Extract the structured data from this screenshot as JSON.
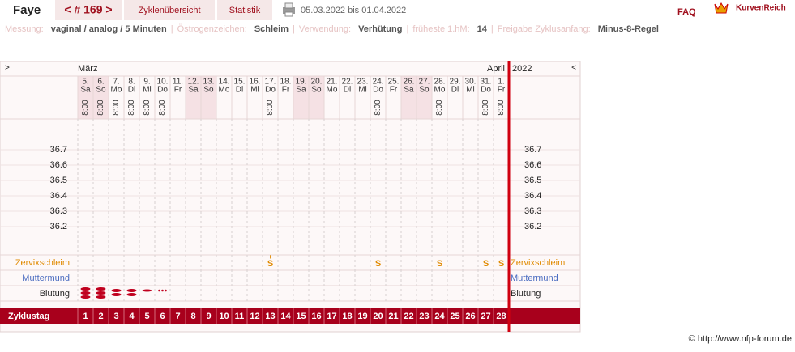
{
  "header": {
    "name": "Faye",
    "cycle_nav": "< # 169 >",
    "tabs": [
      "Zyklenübersicht",
      "Statistik"
    ],
    "date_range": "05.03.2022 bis 01.04.2022",
    "faq": "FAQ",
    "brand": "KurvenReich"
  },
  "settings": [
    {
      "label": "Messung:",
      "value": "vaginal / analog / 5 Minuten"
    },
    {
      "label": "Östrogenzeichen:",
      "value": "Schleim"
    },
    {
      "label": "Verwendung:",
      "value": "Verhütung"
    },
    {
      "label": "früheste 1.hM:",
      "value": "14"
    },
    {
      "label": "Freigabe Zyklusanfang:",
      "value": "Minus-8-Regel"
    }
  ],
  "separator": "|",
  "chart": {
    "nav_left": ">",
    "month_start": "März",
    "month_end": "April",
    "year": "2022",
    "nav_right": "<",
    "days": [
      {
        "date": "5.",
        "weekday": "Sa",
        "time": "8:00",
        "cycle_day": 1
      },
      {
        "date": "6.",
        "weekday": "So",
        "time": "8:00",
        "cycle_day": 2
      },
      {
        "date": "7.",
        "weekday": "Mo",
        "time": "8:00",
        "cycle_day": 3
      },
      {
        "date": "8.",
        "weekday": "Di",
        "time": "8:00",
        "cycle_day": 4
      },
      {
        "date": "9.",
        "weekday": "Mi",
        "time": "8:00",
        "cycle_day": 5
      },
      {
        "date": "10.",
        "weekday": "Do",
        "time": "8:00",
        "cycle_day": 6
      },
      {
        "date": "11.",
        "weekday": "Fr",
        "cycle_day": 7
      },
      {
        "date": "12.",
        "weekday": "Sa",
        "cycle_day": 8
      },
      {
        "date": "13.",
        "weekday": "So",
        "cycle_day": 9
      },
      {
        "date": "14.",
        "weekday": "Mo",
        "cycle_day": 10
      },
      {
        "date": "15.",
        "weekday": "Di",
        "cycle_day": 11
      },
      {
        "date": "16.",
        "weekday": "Mi",
        "cycle_day": 12
      },
      {
        "date": "17.",
        "weekday": "Do",
        "time": "8:00",
        "cycle_day": 13,
        "mucus": "S",
        "mucus_note": "+"
      },
      {
        "date": "18.",
        "weekday": "Fr",
        "cycle_day": 14
      },
      {
        "date": "19.",
        "weekday": "Sa",
        "cycle_day": 15
      },
      {
        "date": "20.",
        "weekday": "So",
        "cycle_day": 16
      },
      {
        "date": "21.",
        "weekday": "Mo",
        "cycle_day": 17
      },
      {
        "date": "22.",
        "weekday": "Di",
        "cycle_day": 18
      },
      {
        "date": "23.",
        "weekday": "Mi",
        "cycle_day": 19
      },
      {
        "date": "24.",
        "weekday": "Do",
        "time": "8:00",
        "cycle_day": 20,
        "mucus": "S"
      },
      {
        "date": "25.",
        "weekday": "Fr",
        "cycle_day": 21
      },
      {
        "date": "26.",
        "weekday": "Sa",
        "cycle_day": 22
      },
      {
        "date": "27.",
        "weekday": "So",
        "cycle_day": 23
      },
      {
        "date": "28.",
        "weekday": "Mo",
        "time": "8:00",
        "cycle_day": 24,
        "mucus": "S"
      },
      {
        "date": "29.",
        "weekday": "Di",
        "cycle_day": 25
      },
      {
        "date": "30.",
        "weekday": "Mi",
        "cycle_day": 26
      },
      {
        "date": "31.",
        "weekday": "Do",
        "time": "8:00",
        "cycle_day": 27,
        "mucus": "S"
      },
      {
        "date": "1.",
        "weekday": "Fr",
        "time": "8:00",
        "cycle_day": 28,
        "mucus": "S"
      }
    ],
    "temperature_ticks": [
      36.7,
      36.6,
      36.5,
      36.4,
      36.3,
      36.2
    ],
    "rows": {
      "cervical_mucus": "Zervixschleim",
      "cervix": "Muttermund",
      "bleeding": "Blutung",
      "cycle_day": "Zyklustag"
    }
  },
  "footer": "© http://www.nfp-forum.de"
}
